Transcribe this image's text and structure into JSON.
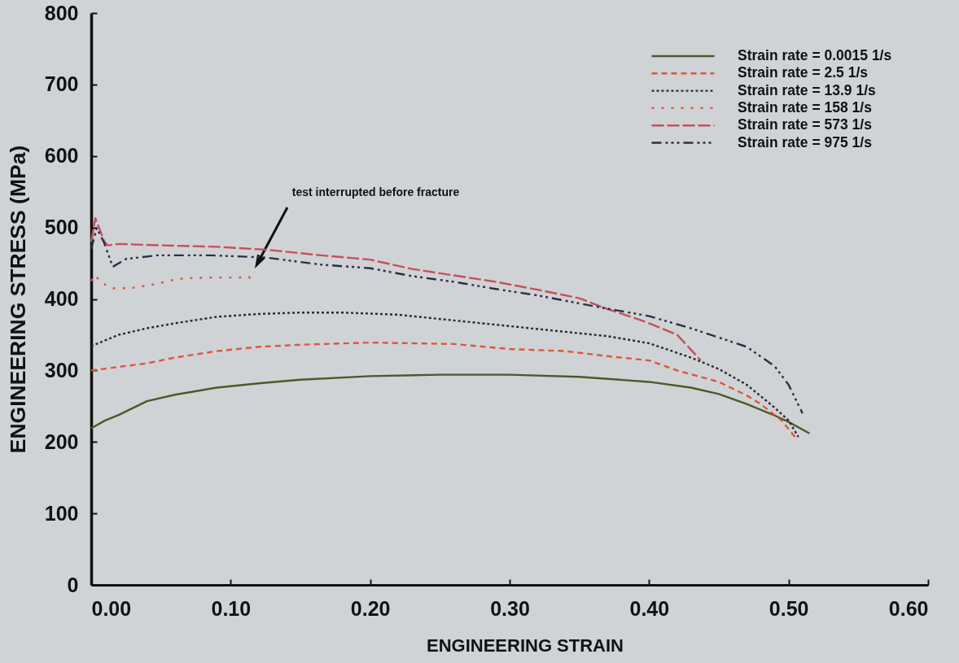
{
  "chart_data": {
    "type": "line",
    "xlabel": "ENGINEERING STRAIN",
    "ylabel": "ENGINEERING STRESS (MPa)",
    "xlim": [
      0,
      0.6
    ],
    "ylim": [
      0,
      800
    ],
    "xticks": [
      {
        "value": 0,
        "label": "0.00"
      },
      {
        "value": 0.1,
        "label": "0.10"
      },
      {
        "value": 0.2,
        "label": "0.20"
      },
      {
        "value": 0.3,
        "label": "0.30"
      },
      {
        "value": 0.4,
        "label": "0.40"
      },
      {
        "value": 0.5,
        "label": "0.50"
      },
      {
        "value": 0.6,
        "label": "0.60"
      }
    ],
    "yticks": [
      0,
      100,
      200,
      300,
      400,
      500,
      600,
      700,
      800
    ],
    "legend": "top right",
    "series": [
      {
        "name": "Strain rate = 0.0015 1/s",
        "color": "#4a5a28",
        "line_style": "solid",
        "x": [
          0,
          0.01,
          0.02,
          0.04,
          0.06,
          0.09,
          0.12,
          0.15,
          0.2,
          0.25,
          0.3,
          0.35,
          0.4,
          0.43,
          0.45,
          0.47,
          0.49,
          0.5,
          0.515
        ],
        "values": [
          219,
          230,
          238,
          257,
          266,
          276,
          282,
          287,
          292,
          294,
          294,
          291,
          284,
          276,
          267,
          253,
          237,
          228,
          212
        ]
      },
      {
        "name": "Strain rate = 2.5 1/s",
        "color": "#e0553a",
        "line_style": "dashed",
        "x": [
          0,
          0.02,
          0.04,
          0.06,
          0.09,
          0.12,
          0.15,
          0.2,
          0.26,
          0.3,
          0.34,
          0.37,
          0.4,
          0.42,
          0.45,
          0.47,
          0.48,
          0.495,
          0.505
        ],
        "values": [
          300,
          305,
          310,
          318,
          327,
          333,
          336,
          339,
          337,
          330,
          327,
          320,
          314,
          300,
          284,
          265,
          253,
          230,
          206
        ]
      },
      {
        "name": "Strain rate = 13.9 1/s",
        "color": "#2b2b2b",
        "line_style": "dotted",
        "x": [
          0,
          0.01,
          0.02,
          0.04,
          0.06,
          0.09,
          0.12,
          0.15,
          0.18,
          0.22,
          0.26,
          0.3,
          0.34,
          0.37,
          0.4,
          0.43,
          0.45,
          0.47,
          0.48,
          0.49,
          0.5,
          0.507
        ],
        "values": [
          334,
          342,
          350,
          359,
          366,
          375,
          379,
          381,
          381,
          378,
          370,
          362,
          354,
          348,
          338,
          318,
          302,
          280,
          264,
          248,
          230,
          207
        ]
      },
      {
        "name": "Strain rate = 158 1/s",
        "color": "#d9573e",
        "line_style": "dotted",
        "x": [
          0,
          0.002,
          0.01,
          0.016,
          0.028,
          0.047,
          0.057,
          0.067,
          0.086,
          0.106,
          0.113,
          0.1165
        ],
        "values": [
          425,
          433,
          420,
          415,
          415,
          421,
          426,
          429,
          430,
          430,
          431,
          424
        ]
      },
      {
        "name": "Strain rate = 573 1/s",
        "color": "#c4505c",
        "line_style": "dashed",
        "x": [
          0,
          0.003,
          0.0095,
          0.012,
          0.02,
          0.05,
          0.09,
          0.125,
          0.165,
          0.2,
          0.23,
          0.26,
          0.29,
          0.32,
          0.35,
          0.37,
          0.39,
          0.4,
          0.42,
          0.43,
          0.437
        ],
        "values": [
          480,
          513,
          480,
          475,
          477,
          475,
          473,
          469,
          461,
          455,
          442,
          433,
          424,
          413,
          401,
          386,
          373,
          366,
          350,
          329,
          314
        ]
      },
      {
        "name": "Strain rate = 975 1/s",
        "color": "#2a3048",
        "line_style": "dashed",
        "x": [
          0,
          0.004,
          0.009,
          0.0155,
          0.025,
          0.0475,
          0.086,
          0.125,
          0.165,
          0.2,
          0.23,
          0.26,
          0.29,
          0.32,
          0.36,
          0.4,
          0.43,
          0.47,
          0.49,
          0.5,
          0.51
        ],
        "values": [
          470,
          499,
          480,
          445,
          456,
          461,
          461,
          458,
          448,
          443,
          432,
          424,
          414,
          405,
          390,
          376,
          359,
          333,
          306,
          280,
          240
        ]
      }
    ],
    "annotations": [
      "test interrupted before fracture"
    ]
  }
}
